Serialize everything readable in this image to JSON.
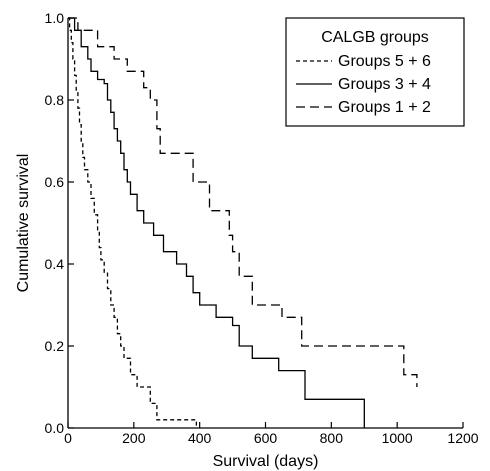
{
  "chart_data": {
    "type": "line",
    "step": true,
    "title": "",
    "xlabel": "Survival (days)",
    "ylabel": "Cumulative survival",
    "xlim": [
      0,
      1200
    ],
    "ylim": [
      0,
      1.0
    ],
    "x_ticks": [
      0,
      200,
      400,
      600,
      800,
      1000,
      1200
    ],
    "y_ticks": [
      0.0,
      0.2,
      0.4,
      0.6,
      0.8,
      1.0
    ],
    "x_tick_labels": [
      "0",
      "200",
      "400",
      "600",
      "800",
      "1000",
      "1200"
    ],
    "y_tick_labels": [
      "0.0",
      "0.2",
      "0.4",
      "0.6",
      "0.8",
      "1.0"
    ],
    "grid": false,
    "legend": {
      "title": "CALGB groups",
      "position": "top-right"
    },
    "series": [
      {
        "name": "Groups 5 + 6",
        "dash": "short-dash",
        "points": [
          [
            0,
            1.0
          ],
          [
            5,
            0.97
          ],
          [
            10,
            0.94
          ],
          [
            15,
            0.9
          ],
          [
            20,
            0.86
          ],
          [
            25,
            0.82
          ],
          [
            30,
            0.78
          ],
          [
            35,
            0.74
          ],
          [
            40,
            0.7
          ],
          [
            45,
            0.66
          ],
          [
            50,
            0.63
          ],
          [
            60,
            0.6
          ],
          [
            70,
            0.56
          ],
          [
            80,
            0.52
          ],
          [
            90,
            0.48
          ],
          [
            95,
            0.44
          ],
          [
            100,
            0.41
          ],
          [
            110,
            0.38
          ],
          [
            120,
            0.34
          ],
          [
            130,
            0.3
          ],
          [
            140,
            0.27
          ],
          [
            150,
            0.23
          ],
          [
            160,
            0.2
          ],
          [
            170,
            0.17
          ],
          [
            190,
            0.13
          ],
          [
            210,
            0.1
          ],
          [
            250,
            0.06
          ],
          [
            270,
            0.02
          ],
          [
            390,
            0.0
          ]
        ]
      },
      {
        "name": "Groups 3 + 4",
        "dash": "solid",
        "points": [
          [
            0,
            1.0
          ],
          [
            20,
            0.97
          ],
          [
            40,
            0.93
          ],
          [
            60,
            0.9
          ],
          [
            70,
            0.87
          ],
          [
            90,
            0.85
          ],
          [
            110,
            0.84
          ],
          [
            120,
            0.8
          ],
          [
            130,
            0.77
          ],
          [
            140,
            0.73
          ],
          [
            150,
            0.7
          ],
          [
            160,
            0.67
          ],
          [
            170,
            0.63
          ],
          [
            180,
            0.6
          ],
          [
            190,
            0.57
          ],
          [
            210,
            0.53
          ],
          [
            230,
            0.5
          ],
          [
            260,
            0.47
          ],
          [
            290,
            0.43
          ],
          [
            330,
            0.4
          ],
          [
            360,
            0.37
          ],
          [
            380,
            0.33
          ],
          [
            400,
            0.3
          ],
          [
            450,
            0.27
          ],
          [
            500,
            0.25
          ],
          [
            520,
            0.2
          ],
          [
            560,
            0.17
          ],
          [
            640,
            0.14
          ],
          [
            720,
            0.07
          ],
          [
            900,
            0.0
          ]
        ]
      },
      {
        "name": "Groups 1 + 2",
        "dash": "long-dash",
        "points": [
          [
            0,
            1.0
          ],
          [
            30,
            0.97
          ],
          [
            90,
            0.93
          ],
          [
            140,
            0.9
          ],
          [
            180,
            0.87
          ],
          [
            230,
            0.83
          ],
          [
            250,
            0.8
          ],
          [
            270,
            0.73
          ],
          [
            280,
            0.67
          ],
          [
            380,
            0.6
          ],
          [
            430,
            0.53
          ],
          [
            490,
            0.47
          ],
          [
            500,
            0.43
          ],
          [
            520,
            0.37
          ],
          [
            560,
            0.3
          ],
          [
            650,
            0.27
          ],
          [
            710,
            0.2
          ],
          [
            1020,
            0.13
          ],
          [
            1060,
            0.1
          ]
        ]
      }
    ]
  }
}
